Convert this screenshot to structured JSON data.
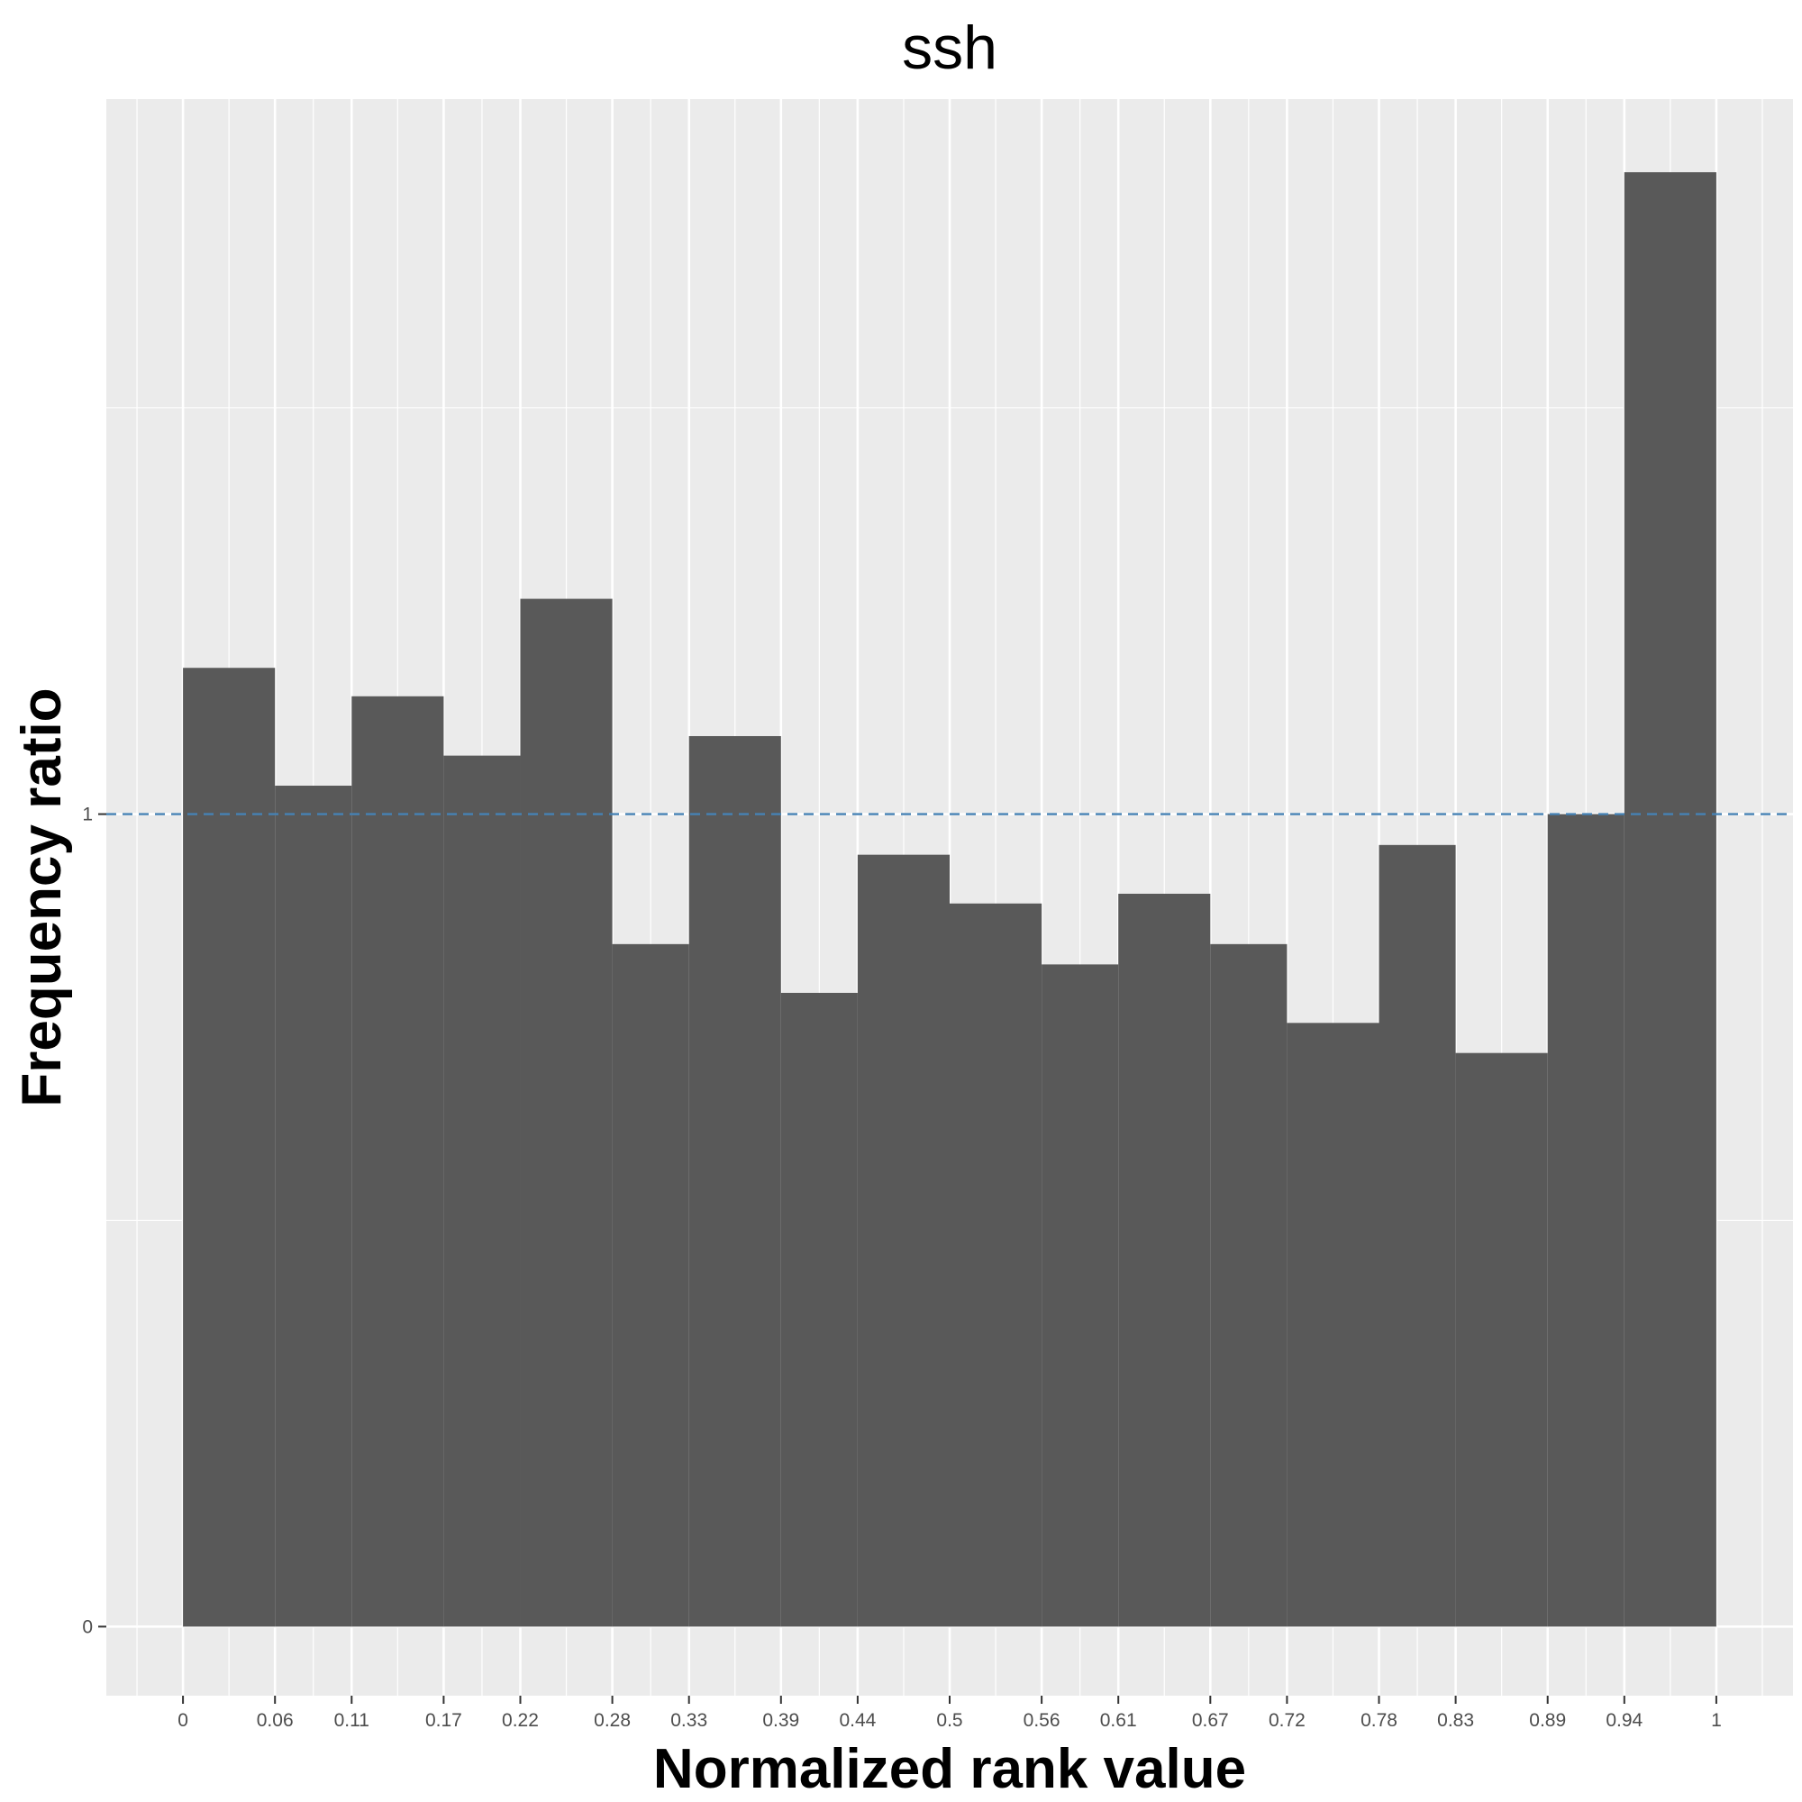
{
  "chart_data": {
    "type": "bar",
    "title": "ssh",
    "xlabel": "Normalized rank value",
    "ylabel": "Frequency ratio",
    "x_tick_labels": [
      "0",
      "0.06",
      "0.11",
      "0.17",
      "0.22",
      "0.28",
      "0.33",
      "0.39",
      "0.44",
      "0.5",
      "0.56",
      "0.61",
      "0.67",
      "0.72",
      "0.78",
      "0.83",
      "0.89",
      "0.94",
      "1"
    ],
    "y_tick_labels": [
      "0",
      "1"
    ],
    "bins": [
      {
        "from": 0,
        "to": 0.06,
        "value": 1.18
      },
      {
        "from": 0.06,
        "to": 0.11,
        "value": 1.035
      },
      {
        "from": 0.11,
        "to": 0.17,
        "value": 1.145
      },
      {
        "from": 0.17,
        "to": 0.22,
        "value": 1.072
      },
      {
        "from": 0.22,
        "to": 0.28,
        "value": 1.265
      },
      {
        "from": 0.28,
        "to": 0.33,
        "value": 0.84
      },
      {
        "from": 0.33,
        "to": 0.39,
        "value": 1.096
      },
      {
        "from": 0.39,
        "to": 0.44,
        "value": 0.78
      },
      {
        "from": 0.44,
        "to": 0.5,
        "value": 0.95
      },
      {
        "from": 0.5,
        "to": 0.56,
        "value": 0.89
      },
      {
        "from": 0.56,
        "to": 0.61,
        "value": 0.815
      },
      {
        "from": 0.61,
        "to": 0.67,
        "value": 0.902
      },
      {
        "from": 0.67,
        "to": 0.72,
        "value": 0.84
      },
      {
        "from": 0.72,
        "to": 0.78,
        "value": 0.743
      },
      {
        "from": 0.78,
        "to": 0.83,
        "value": 0.962
      },
      {
        "from": 0.83,
        "to": 0.89,
        "value": 0.706
      },
      {
        "from": 0.89,
        "to": 0.94,
        "value": 1.0
      },
      {
        "from": 0.94,
        "to": 1,
        "value": 1.79
      }
    ],
    "reference_line": {
      "y": 1,
      "style": "dashed",
      "color": "#4682b4"
    },
    "ylim": [
      -0.085,
      1.88
    ],
    "xlim": [
      -0.05,
      1.05
    ],
    "grid": true,
    "colors": {
      "bar": "#595959",
      "panel": "#ebebeb",
      "grid": "#ffffff"
    }
  }
}
